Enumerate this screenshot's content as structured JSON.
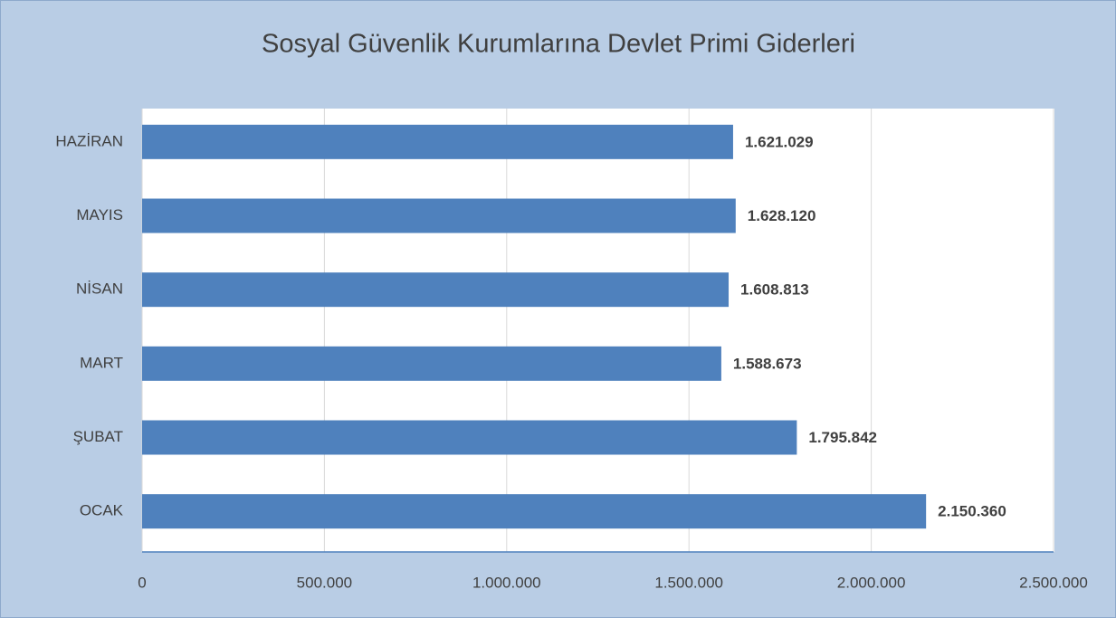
{
  "chart_data": {
    "type": "bar",
    "orientation": "horizontal",
    "title": "Sosyal Güvenlik Kurumlarına Devlet Primi Giderleri",
    "categories": [
      "OCAK",
      "ŞUBAT",
      "MART",
      "NİSAN",
      "MAYIS",
      "HAZİRAN"
    ],
    "values": [
      2150360,
      1795842,
      1588673,
      1608813,
      1628120,
      1621029
    ],
    "value_labels": [
      "2.150.360",
      "1.795.842",
      "1.588.673",
      "1.608.813",
      "1.628.120",
      "1.621.029"
    ],
    "color": "#4f81bd",
    "xlim": [
      0,
      2500000
    ],
    "xticks": [
      0,
      {
        "value": 500000,
        "label": "500.000"
      },
      {
        "value": 1000000,
        "label": "1.000.000"
      },
      {
        "value": 1500000,
        "label": "1.500.000"
      },
      {
        "value": 2000000,
        "label": "2.000.000"
      },
      {
        "value": 2500000,
        "label": "2.500.000"
      }
    ],
    "grid": true
  }
}
